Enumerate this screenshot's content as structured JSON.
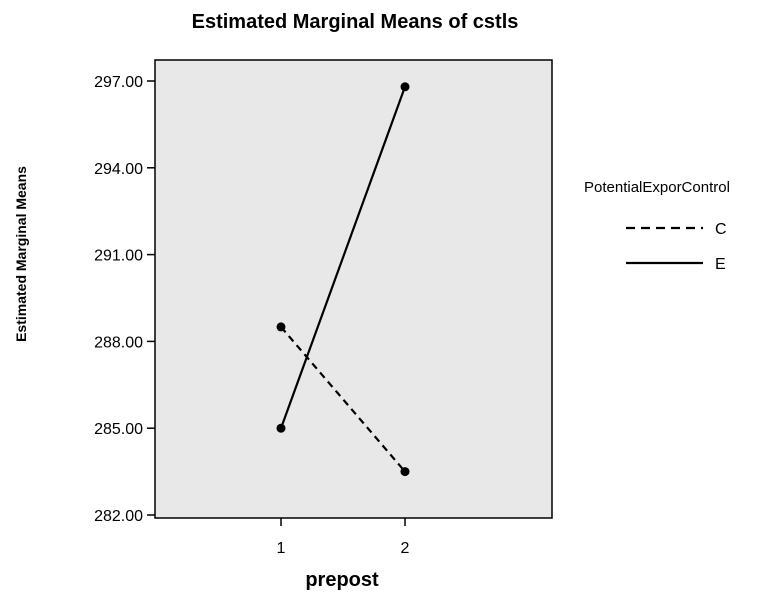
{
  "chart_data": {
    "type": "line",
    "title": "Estimated Marginal Means of cstls",
    "xlabel": "prepost",
    "ylabel": "Estimated Marginal Means",
    "categories": [
      "1",
      "2"
    ],
    "ylim": [
      282.0,
      297.6
    ],
    "yticks": [
      "282.00",
      "285.00",
      "288.00",
      "291.00",
      "294.00",
      "297.00"
    ],
    "grid": false,
    "legend": {
      "title": "PotentialExporControl",
      "placement": "right"
    },
    "series": [
      {
        "name": "C",
        "values": [
          288.5,
          283.5
        ],
        "style": "dashed",
        "color": "#000000"
      },
      {
        "name": "E",
        "values": [
          285.0,
          296.8
        ],
        "style": "solid",
        "color": "#000000"
      }
    ],
    "plot_background": "#e8e8e8"
  }
}
